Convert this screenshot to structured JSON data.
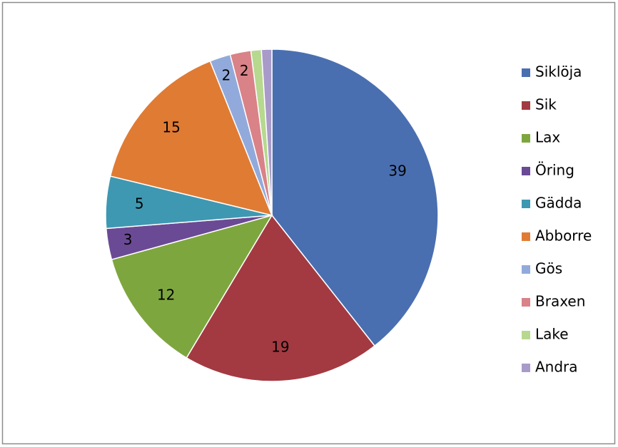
{
  "chart_data": {
    "type": "pie",
    "categories": [
      "Siklöja",
      "Sik",
      "Lax",
      "Öring",
      "Gädda",
      "Abborre",
      "Gös",
      "Braxen",
      "Lake",
      "Andra"
    ],
    "values": [
      39,
      19,
      12,
      3,
      5,
      15,
      2,
      2,
      1,
      1
    ],
    "value_labels": [
      "39",
      "19",
      "12",
      "3",
      "5",
      "15",
      "2",
      "2",
      null,
      null
    ],
    "colors": [
      "#4a6fb0",
      "#a33a41",
      "#7ea63f",
      "#6b4a95",
      "#3e98b2",
      "#e07b34",
      "#92aadb",
      "#d98288",
      "#b7d88f",
      "#a89bc9"
    ],
    "legend": "right"
  }
}
